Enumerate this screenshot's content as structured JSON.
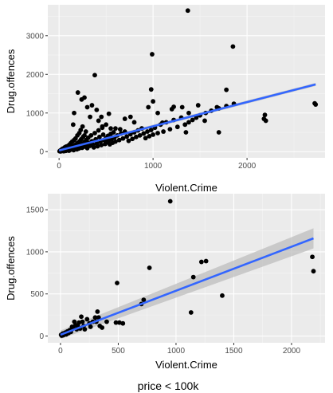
{
  "caption": "price < 100k",
  "colors": {
    "panel": "#ebebeb",
    "grid_major": "#ffffff",
    "point": "#000000",
    "trend": "#3366ff",
    "ribbon": "#bdbdbd"
  },
  "chart_data": [
    {
      "type": "scatter",
      "xlabel": "Violent.Crime",
      "ylabel": "Drug.offences",
      "xlim": [
        -120,
        2830
      ],
      "ylim": [
        -160,
        3800
      ],
      "xticks": [
        0,
        1000,
        2000
      ],
      "yticks": [
        0,
        1000,
        2000,
        3000
      ],
      "x_tick_labels": [
        "0",
        "1000",
        "2000"
      ],
      "y_tick_labels": [
        "0",
        "1000",
        "2000",
        "3000"
      ],
      "grid": true,
      "trend": {
        "method": "linear",
        "x": [
          0,
          2730
        ],
        "y": [
          30,
          1740
        ],
        "ribbon_halfwidth": 40
      },
      "points": [
        [
          5,
          10
        ],
        [
          10,
          25
        ],
        [
          15,
          5
        ],
        [
          20,
          40
        ],
        [
          25,
          15
        ],
        [
          30,
          60
        ],
        [
          35,
          20
        ],
        [
          40,
          80
        ],
        [
          45,
          30
        ],
        [
          50,
          10
        ],
        [
          55,
          50
        ],
        [
          60,
          110
        ],
        [
          65,
          35
        ],
        [
          70,
          20
        ],
        [
          75,
          130
        ],
        [
          80,
          60
        ],
        [
          85,
          90
        ],
        [
          90,
          40
        ],
        [
          95,
          150
        ],
        [
          100,
          70
        ],
        [
          105,
          25
        ],
        [
          110,
          180
        ],
        [
          115,
          95
        ],
        [
          120,
          50
        ],
        [
          125,
          220
        ],
        [
          130,
          110
        ],
        [
          135,
          60
        ],
        [
          140,
          260
        ],
        [
          145,
          130
        ],
        [
          150,
          75
        ],
        [
          155,
          40
        ],
        [
          160,
          300
        ],
        [
          165,
          160
        ],
        [
          170,
          90
        ],
        [
          175,
          340
        ],
        [
          180,
          190
        ],
        [
          185,
          110
        ],
        [
          190,
          60
        ],
        [
          195,
          420
        ],
        [
          200,
          230
        ],
        [
          205,
          130
        ],
        [
          210,
          80
        ],
        [
          215,
          480
        ],
        [
          220,
          270
        ],
        [
          225,
          160
        ],
        [
          230,
          560
        ],
        [
          235,
          320
        ],
        [
          240,
          190
        ],
        [
          245,
          100
        ],
        [
          250,
          650
        ],
        [
          255,
          380
        ],
        [
          260,
          220
        ],
        [
          265,
          130
        ],
        [
          270,
          420
        ],
        [
          275,
          260
        ],
        [
          280,
          160
        ],
        [
          285,
          520
        ],
        [
          290,
          300
        ],
        [
          295,
          190
        ],
        [
          300,
          90
        ],
        [
          310,
          360
        ],
        [
          320,
          230
        ],
        [
          330,
          150
        ],
        [
          340,
          420
        ],
        [
          350,
          270
        ],
        [
          360,
          180
        ],
        [
          370,
          110
        ],
        [
          380,
          480
        ],
        [
          390,
          320
        ],
        [
          400,
          210
        ],
        [
          410,
          140
        ],
        [
          420,
          550
        ],
        [
          430,
          380
        ],
        [
          440,
          250
        ],
        [
          450,
          170
        ],
        [
          460,
          620
        ],
        [
          470,
          440
        ],
        [
          480,
          300
        ],
        [
          490,
          200
        ],
        [
          500,
          350
        ],
        [
          510,
          240
        ],
        [
          520,
          410
        ],
        [
          530,
          290
        ],
        [
          540,
          190
        ],
        [
          550,
          460
        ],
        [
          560,
          330
        ],
        [
          570,
          230
        ],
        [
          580,
          500
        ],
        [
          590,
          370
        ],
        [
          600,
          260
        ],
        [
          620,
          420
        ],
        [
          640,
          300
        ],
        [
          660,
          470
        ],
        [
          680,
          340
        ],
        [
          700,
          520
        ],
        [
          720,
          390
        ],
        [
          740,
          280
        ],
        [
          760,
          450
        ],
        [
          780,
          330
        ],
        [
          800,
          500
        ],
        [
          820,
          380
        ],
        [
          840,
          550
        ],
        [
          860,
          420
        ],
        [
          880,
          600
        ],
        [
          900,
          470
        ],
        [
          920,
          350
        ],
        [
          940,
          520
        ],
        [
          960,
          400
        ],
        [
          980,
          560
        ],
        [
          1000,
          440
        ],
        [
          1020,
          620
        ],
        [
          1050,
          480
        ],
        [
          1080,
          700
        ],
        [
          1110,
          520
        ],
        [
          1140,
          760
        ],
        [
          1180,
          580
        ],
        [
          1220,
          820
        ],
        [
          1260,
          640
        ],
        [
          1300,
          880
        ],
        [
          1340,
          700
        ],
        [
          1380,
          760
        ],
        [
          1420,
          820
        ],
        [
          1460,
          880
        ],
        [
          1500,
          940
        ],
        [
          1560,
          1000
        ],
        [
          1620,
          1060
        ],
        [
          1700,
          1120
        ],
        [
          1780,
          1180
        ],
        [
          1860,
          1240
        ],
        [
          150,
          700
        ],
        [
          160,
          1000
        ],
        [
          200,
          1530
        ],
        [
          240,
          1350
        ],
        [
          270,
          1400
        ],
        [
          300,
          1150
        ],
        [
          330,
          900
        ],
        [
          350,
          1200
        ],
        [
          380,
          1980
        ],
        [
          400,
          1080
        ],
        [
          420,
          800
        ],
        [
          450,
          900
        ],
        [
          460,
          650
        ],
        [
          500,
          700
        ],
        [
          530,
          980
        ],
        [
          550,
          600
        ],
        [
          600,
          600
        ],
        [
          650,
          580
        ],
        [
          700,
          850
        ],
        [
          760,
          900
        ],
        [
          800,
          760
        ],
        [
          880,
          600
        ],
        [
          950,
          1150
        ],
        [
          980,
          1610
        ],
        [
          990,
          2520
        ],
        [
          1000,
          1300
        ],
        [
          1050,
          1000
        ],
        [
          1100,
          750
        ],
        [
          1200,
          1100
        ],
        [
          1220,
          1160
        ],
        [
          1310,
          1150
        ],
        [
          1350,
          500
        ],
        [
          1370,
          3650
        ],
        [
          1380,
          1000
        ],
        [
          1480,
          1200
        ],
        [
          1550,
          800
        ],
        [
          1680,
          1150
        ],
        [
          1700,
          500
        ],
        [
          1780,
          1600
        ],
        [
          1850,
          2720
        ],
        [
          2180,
          850
        ],
        [
          2190,
          950
        ],
        [
          2200,
          800
        ],
        [
          2720,
          1250
        ],
        [
          2730,
          1220
        ]
      ]
    },
    {
      "type": "scatter",
      "xlabel": "Violent.Crime",
      "ylabel": "Drug.offences",
      "xlim": [
        -110,
        2290
      ],
      "ylim": [
        -80,
        1690
      ],
      "xticks": [
        0,
        500,
        1000,
        1500,
        2000
      ],
      "yticks": [
        0,
        500,
        1000,
        1500
      ],
      "x_tick_labels": [
        "0",
        "500",
        "1000",
        "1500",
        "2000"
      ],
      "y_tick_labels": [
        "0",
        "500",
        "1000",
        "1500"
      ],
      "grid": true,
      "trend": {
        "method": "linear",
        "x": [
          0,
          2190
        ],
        "y": [
          15,
          1160
        ],
        "ribbon_halfwidth_start": 50,
        "ribbon_halfwidth_end": 120
      },
      "points": [
        [
          5,
          15
        ],
        [
          10,
          5
        ],
        [
          20,
          30
        ],
        [
          25,
          10
        ],
        [
          30,
          25
        ],
        [
          40,
          40
        ],
        [
          50,
          20
        ],
        [
          60,
          55
        ],
        [
          70,
          35
        ],
        [
          80,
          70
        ],
        [
          90,
          50
        ],
        [
          100,
          110
        ],
        [
          110,
          90
        ],
        [
          120,
          170
        ],
        [
          130,
          130
        ],
        [
          140,
          80
        ],
        [
          150,
          120
        ],
        [
          160,
          160
        ],
        [
          170,
          90
        ],
        [
          180,
          230
        ],
        [
          190,
          170
        ],
        [
          200,
          120
        ],
        [
          210,
          80
        ],
        [
          230,
          200
        ],
        [
          250,
          150
        ],
        [
          260,
          110
        ],
        [
          280,
          170
        ],
        [
          300,
          220
        ],
        [
          310,
          170
        ],
        [
          320,
          290
        ],
        [
          330,
          220
        ],
        [
          340,
          120
        ],
        [
          360,
          100
        ],
        [
          400,
          170
        ],
        [
          480,
          160
        ],
        [
          510,
          160
        ],
        [
          540,
          150
        ],
        [
          490,
          630
        ],
        [
          700,
          380
        ],
        [
          720,
          430
        ],
        [
          770,
          810
        ],
        [
          950,
          1600
        ],
        [
          1130,
          280
        ],
        [
          1150,
          700
        ],
        [
          1220,
          880
        ],
        [
          1260,
          890
        ],
        [
          1400,
          480
        ],
        [
          2180,
          940
        ],
        [
          2190,
          770
        ]
      ]
    }
  ]
}
